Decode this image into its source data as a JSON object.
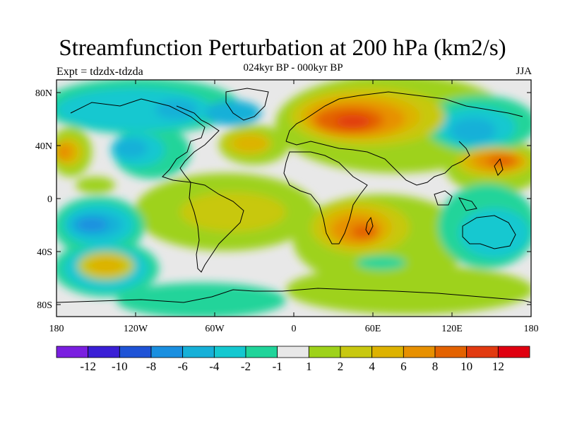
{
  "title": "Streamfunction Perturbation at 200 hPa (km2/s)",
  "subtitle": "024kyr BP - 000kyr BP",
  "left_label": "Expt = tdzdx-tdzda",
  "right_label": "JJA",
  "lat_ticks": [
    "80N",
    "40N",
    "0",
    "40S",
    "80S"
  ],
  "lon_ticks": [
    "180",
    "120W",
    "60W",
    "0",
    "60E",
    "120E",
    "180"
  ],
  "colorbar": {
    "colors": [
      "#7a1fe0",
      "#3a1fd6",
      "#1f53d6",
      "#1a8fe0",
      "#16b0d8",
      "#14c8d0",
      "#20d49a",
      "#e8e8e8",
      "#9ed21a",
      "#c8c810",
      "#ddb200",
      "#e79000",
      "#e36200",
      "#e23a10",
      "#e00010"
    ],
    "labels": [
      "-12",
      "-10",
      "-8",
      "-6",
      "-4",
      "-2",
      "-1",
      "1",
      "2",
      "4",
      "6",
      "8",
      "10",
      "12"
    ]
  },
  "palette": {
    "background": "#e8e8e8",
    "neg1": "#20d49a",
    "neg2": "#14c8d0",
    "neg4": "#16b0d8",
    "neg6": "#1a8fe0",
    "neg8": "#1f53d6",
    "pos1": "#9ed21a",
    "pos2": "#c8c810",
    "pos4": "#ddb200",
    "pos6": "#e79000",
    "pos8": "#e36200",
    "pos10": "#e23a10"
  }
}
